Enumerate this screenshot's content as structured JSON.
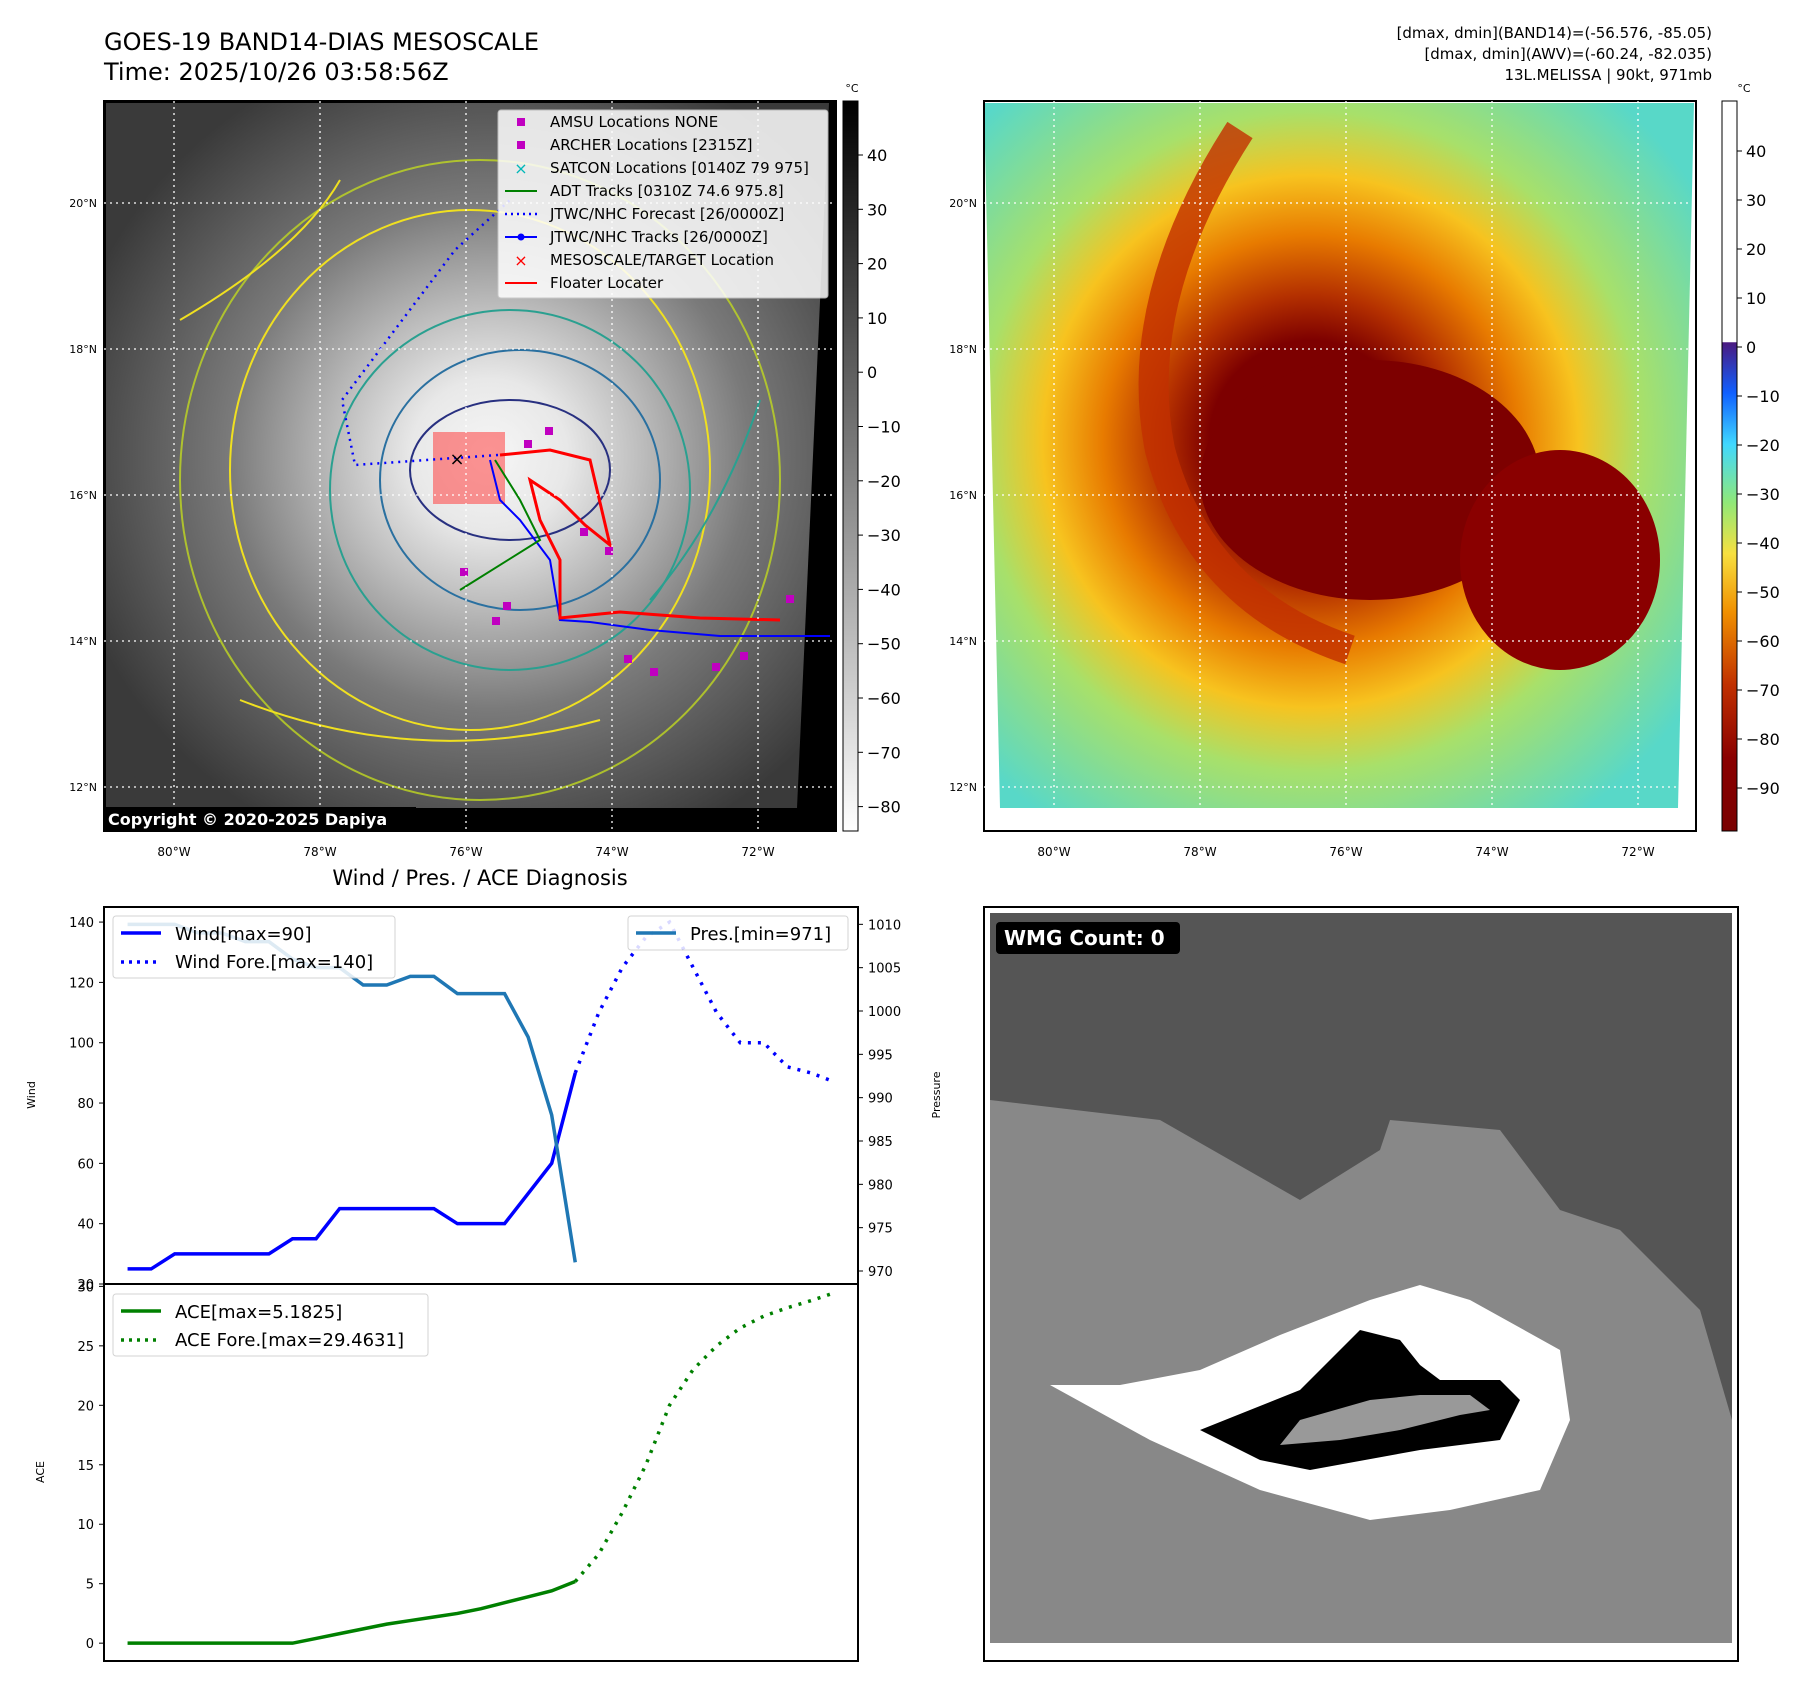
{
  "header": {
    "title": "GOES-19 BAND14-DIAS MESOSCALE",
    "time": "Time: 2025/10/26 03:58:56Z",
    "info_line1": "[dmax, dmin](BAND14)=(-56.576, -85.05)",
    "info_line2": "[dmax, dmin](AWV)=(-60.24, -82.035)",
    "info_line3": "13L.MELISSA | 90kt, 971mb"
  },
  "map_panels": {
    "lat_labels": [
      "20°N",
      "18°N",
      "16°N",
      "14°N",
      "12°N"
    ],
    "lon_labels": [
      "80°W",
      "78°W",
      "76°W",
      "74°W",
      "72°W"
    ],
    "colorbar_unit": "°C",
    "colorbar_gray_ticks": [
      "40",
      "30",
      "20",
      "10",
      "0",
      "−10",
      "−20",
      "−30",
      "−40",
      "−50",
      "−60",
      "−70",
      "−80"
    ],
    "colorbar_color_ticks": [
      "40",
      "30",
      "20",
      "10",
      "0",
      "−10",
      "−20",
      "−30",
      "−40",
      "−50",
      "−60",
      "−70",
      "−80",
      "−90"
    ],
    "copyright": "Copyright © 2020-2025 Dapiya",
    "legend": [
      {
        "label": "AMSU Locations NONE",
        "marker": "square",
        "color": "#c000c0"
      },
      {
        "label": "ARCHER Locations [2315Z]",
        "marker": "square",
        "color": "#c000c0"
      },
      {
        "label": "SATCON Locations [0140Z 79 975]",
        "marker": "x",
        "color": "#00b8b8"
      },
      {
        "label": "ADT Tracks [0310Z 74.6 975.8]",
        "marker": "line",
        "color": "#008000"
      },
      {
        "label": "JTWC/NHC Forecast [26/0000Z]",
        "marker": "dotted",
        "color": "#0000ff"
      },
      {
        "label": "JTWC/NHC Tracks [26/0000Z]",
        "marker": "line-dot",
        "color": "#0000ff"
      },
      {
        "label": "MESOSCALE/TARGET Location",
        "marker": "x",
        "color": "#ff0000"
      },
      {
        "label": "Floater Locater",
        "marker": "line",
        "color": "#ff0000"
      }
    ],
    "wmg_count": "WMG Count: 0"
  },
  "chart_data": [
    {
      "type": "line",
      "title": "Wind / Pres. / ACE Diagnosis",
      "ylabel": "Wind",
      "ylim": [
        20,
        145
      ],
      "y2label": "Pressure",
      "y2lim": [
        968.5,
        1012
      ],
      "xlim": [
        -1,
        31
      ],
      "yticks": [
        "140",
        "120",
        "100",
        "80",
        "60",
        "40",
        "20"
      ],
      "y2ticks": [
        "1010",
        "1005",
        "1000",
        "995",
        "990",
        "985",
        "980",
        "975",
        "970"
      ],
      "series": [
        {
          "name": "Wind[max=90]",
          "color": "#0000ff",
          "style": "solid",
          "x": [
            0,
            1,
            2,
            3,
            4,
            5,
            6,
            7,
            8,
            9,
            10,
            11,
            12,
            13,
            14,
            15,
            16,
            17,
            18,
            19
          ],
          "values": [
            25,
            25,
            30,
            30,
            30,
            30,
            30,
            35,
            35,
            45,
            45,
            45,
            45,
            45,
            40,
            40,
            40,
            50,
            60,
            90
          ]
        },
        {
          "name": "Wind Fore.[max=140]",
          "color": "#0000ff",
          "style": "dotted",
          "x": [
            19,
            20,
            21,
            22,
            23,
            24,
            25,
            26,
            27,
            28,
            29,
            30
          ],
          "values": [
            90,
            110,
            125,
            135,
            140,
            125,
            110,
            100,
            100,
            92,
            90,
            87
          ]
        },
        {
          "name": "Pres.[min=971]",
          "color": "#1f77b4",
          "style": "solid",
          "axis": "right",
          "x": [
            0,
            1,
            2,
            3,
            4,
            5,
            6,
            7,
            8,
            9,
            10,
            11,
            12,
            13,
            14,
            15,
            16,
            17,
            18,
            19
          ],
          "values": [
            1010,
            1010,
            1010,
            1009,
            1009,
            1008,
            1008,
            1006,
            1005,
            1005,
            1003,
            1003,
            1004,
            1004,
            1002,
            1002,
            1002,
            997,
            988,
            971
          ]
        }
      ]
    },
    {
      "type": "line",
      "ylabel": "ACE",
      "ylim": [
        -1.5,
        30.2
      ],
      "xlim": [
        -1,
        31
      ],
      "yticks": [
        "30",
        "25",
        "20",
        "15",
        "10",
        "5",
        "0"
      ],
      "series": [
        {
          "name": "ACE[max=5.1825]",
          "color": "#008000",
          "style": "solid",
          "x": [
            0,
            1,
            2,
            3,
            4,
            5,
            6,
            7,
            8,
            9,
            10,
            11,
            12,
            13,
            14,
            15,
            16,
            17,
            18,
            19
          ],
          "values": [
            0,
            0,
            0,
            0,
            0,
            0,
            0,
            0,
            0.4,
            0.8,
            1.2,
            1.6,
            1.9,
            2.2,
            2.5,
            2.9,
            3.4,
            3.9,
            4.4,
            5.18
          ]
        },
        {
          "name": "ACE Fore.[max=29.4631]",
          "color": "#008000",
          "style": "dotted",
          "x": [
            19,
            20,
            21,
            22,
            23,
            24,
            25,
            26,
            27,
            28,
            29,
            30
          ],
          "values": [
            5.18,
            7.5,
            11,
            15,
            20,
            23,
            25,
            26.5,
            27.5,
            28.2,
            28.8,
            29.46
          ]
        }
      ]
    }
  ]
}
